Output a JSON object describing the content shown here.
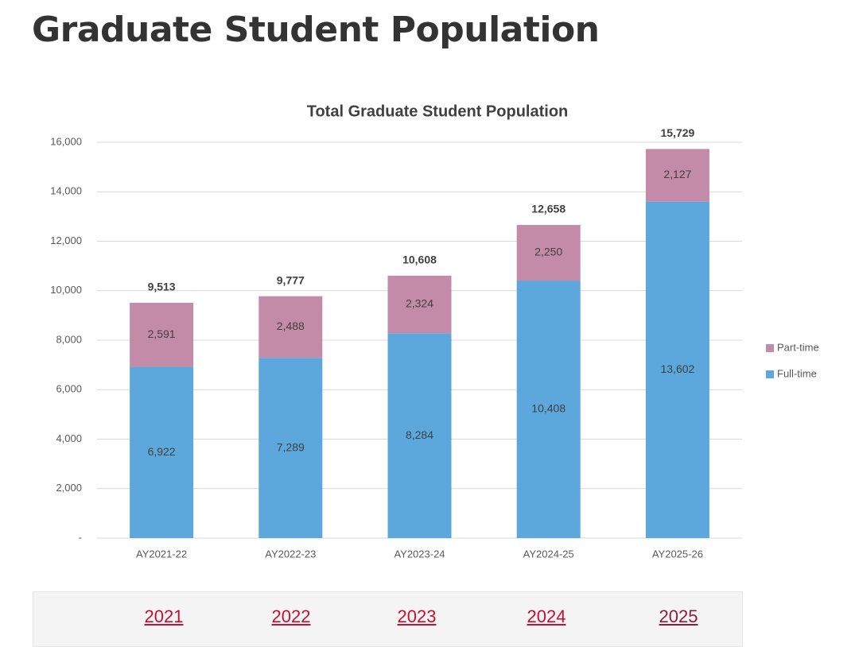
{
  "header": {
    "title": "Graduate Student Population"
  },
  "chart_data": {
    "type": "stacked_bar",
    "title": "Total Graduate Student Population",
    "categories": [
      "AY2021-22",
      "AY2022-23",
      "AY2023-24",
      "AY2024-25",
      "AY2025-26"
    ],
    "series": [
      {
        "name": "Full-time",
        "color": "#5ca8dc",
        "values": [
          6922,
          7289,
          8284,
          10408,
          13602
        ],
        "value_labels": [
          "6,922",
          "7,289",
          "8,284",
          "10,408",
          "13,602"
        ]
      },
      {
        "name": "Part-time",
        "color": "#c48ba8",
        "values": [
          2591,
          2488,
          2324,
          2250,
          2127
        ],
        "value_labels": [
          "2,591",
          "2,488",
          "2,324",
          "2,250",
          "2,127"
        ]
      }
    ],
    "totals": [
      9513,
      9777,
      10608,
      12658,
      15729
    ],
    "total_labels": [
      "9,513",
      "9,777",
      "10,608",
      "12,658",
      "15,729"
    ],
    "ylim": [
      0,
      16000
    ],
    "yticks": [
      {
        "value": 0,
        "label": "-"
      },
      {
        "value": 2000,
        "label": "2,000"
      },
      {
        "value": 4000,
        "label": "4,000"
      },
      {
        "value": 6000,
        "label": "6,000"
      },
      {
        "value": 8000,
        "label": "8,000"
      },
      {
        "value": 10000,
        "label": "10,000"
      },
      {
        "value": 12000,
        "label": "12,000"
      },
      {
        "value": 14000,
        "label": "14,000"
      },
      {
        "value": 16000,
        "label": "16,000"
      }
    ],
    "grid": true,
    "legend": "right"
  },
  "links": [
    "2021",
    "2022",
    "2023",
    "2024",
    "2025"
  ]
}
